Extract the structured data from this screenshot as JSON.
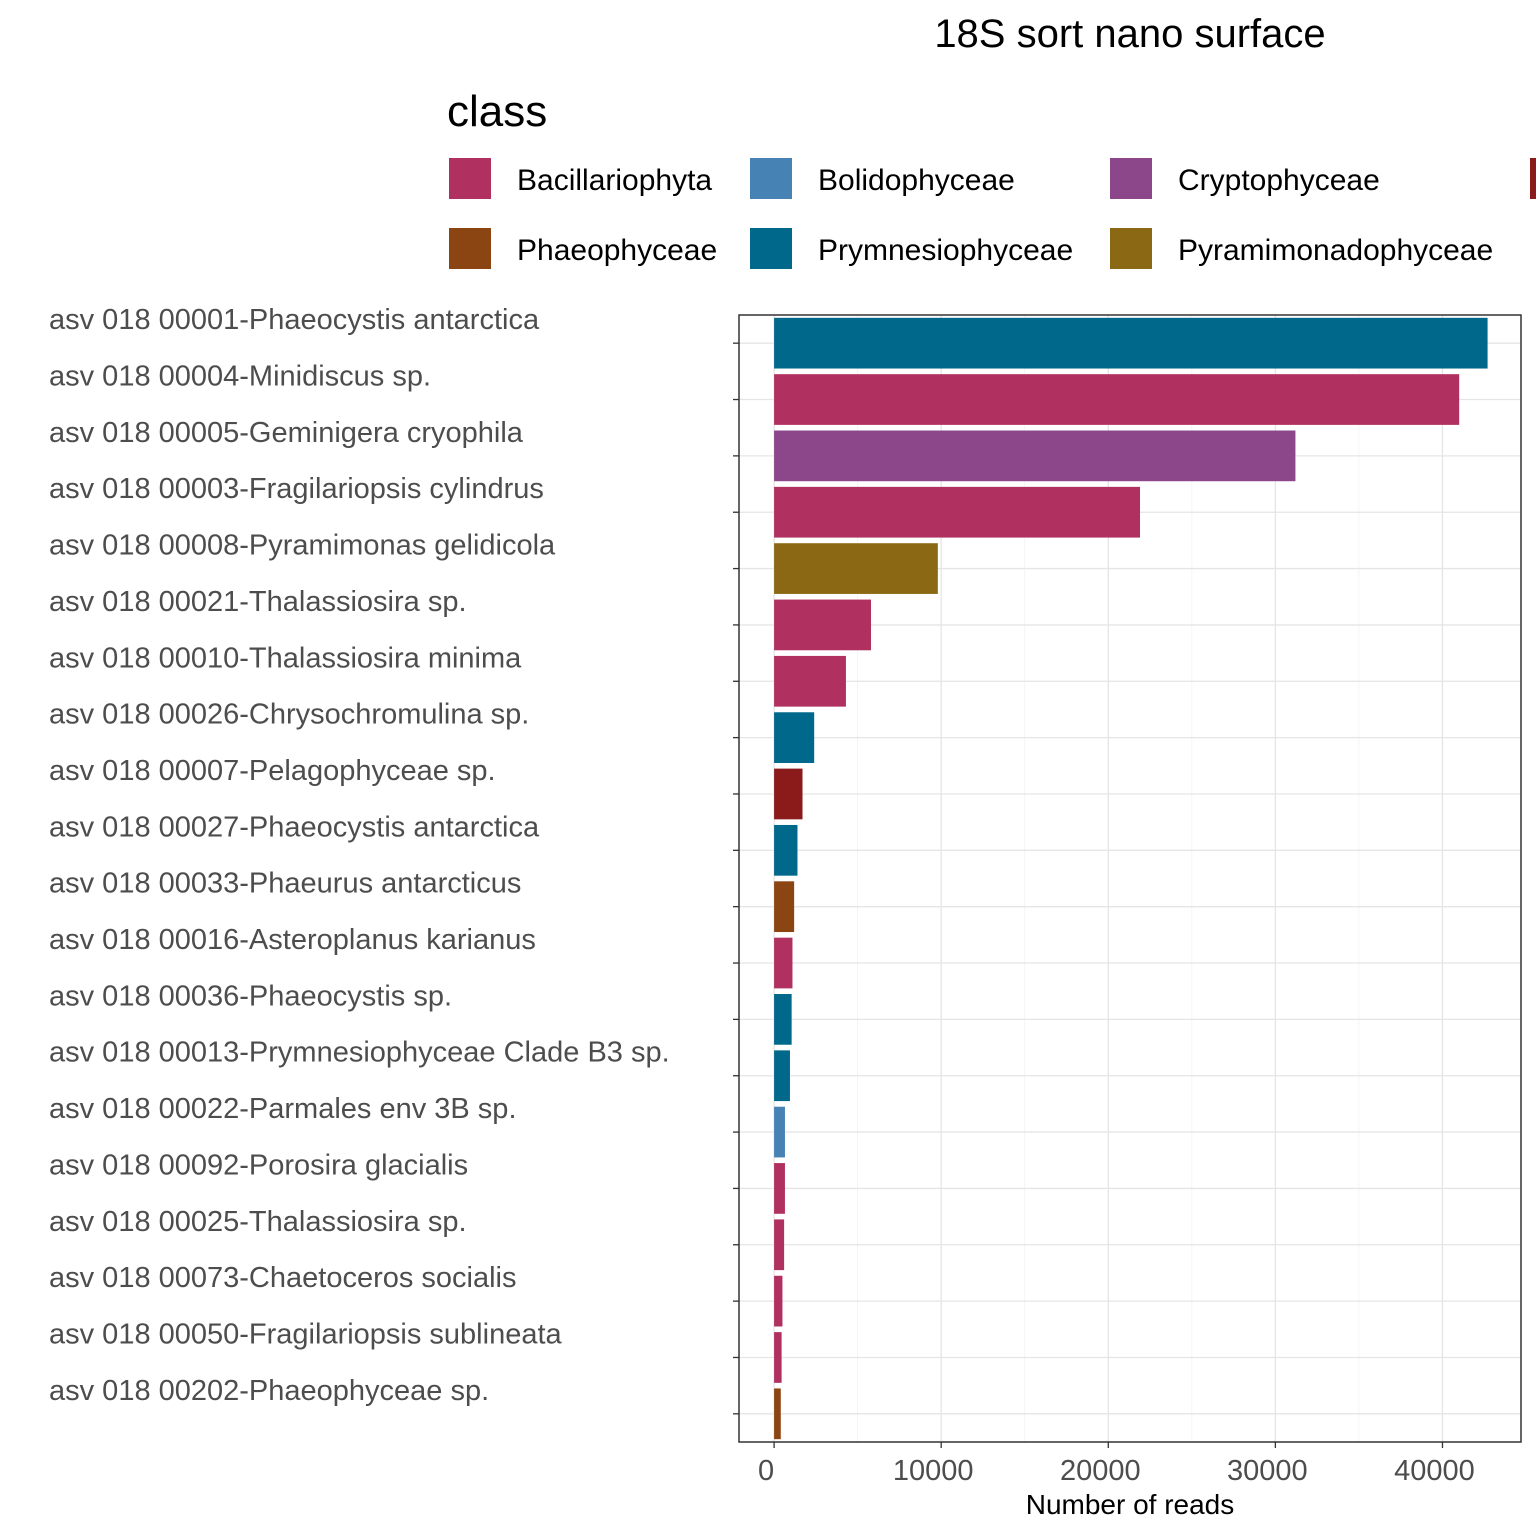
{
  "chart_data": {
    "type": "bar",
    "orientation": "horizontal",
    "title": "18S sort nano surface",
    "xlabel": "Number of reads",
    "ylabel": "",
    "xlim": [
      -2100,
      44700
    ],
    "xticks": [
      0,
      10000,
      20000,
      30000,
      40000
    ],
    "xtick_labels": [
      "0",
      "10000",
      "20000",
      "30000",
      "40000"
    ],
    "grid": true,
    "legend": {
      "title": "class",
      "placement": "top",
      "entries": [
        {
          "label": "Bacillariophyta",
          "color": "#B03060"
        },
        {
          "label": "Bolidophyceae",
          "color": "#4682B4"
        },
        {
          "label": "Cryptophyceae",
          "color": "#8B4789"
        },
        {
          "label": "",
          "color": "#8B1A1A"
        },
        {
          "label": "Phaeophyceae",
          "color": "#8B4513"
        },
        {
          "label": "Prymnesiophyceae",
          "color": "#00688B"
        },
        {
          "label": "Pyramimonadophyceae",
          "color": "#8B6914"
        }
      ]
    },
    "categories": [
      "asv 018 00001-Phaeocystis antarctica",
      "asv 018 00004-Minidiscus sp.",
      "asv 018 00005-Geminigera cryophila",
      "asv 018 00003-Fragilariopsis cylindrus",
      "asv 018 00008-Pyramimonas gelidicola",
      "asv 018 00021-Thalassiosira sp.",
      "asv 018 00010-Thalassiosira minima",
      "asv 018 00026-Chrysochromulina sp.",
      "asv 018 00007-Pelagophyceae sp.",
      "asv 018 00027-Phaeocystis antarctica",
      "asv 018 00033-Phaeurus antarcticus",
      "asv 018 00016-Asteroplanus karianus",
      "asv 018 00036-Phaeocystis sp.",
      "asv 018 00013-Prymnesiophyceae Clade B3 sp.",
      "asv 018 00022-Parmales env 3B sp.",
      "asv 018 00092-Porosira glacialis",
      "asv 018 00025-Thalassiosira sp.",
      "asv 018 00073-Chaetoceros socialis",
      "asv 018 00050-Fragilariopsis sublineata",
      "asv 018 00202-Phaeophyceae sp."
    ],
    "values": [
      42700,
      41000,
      31200,
      21900,
      9800,
      5800,
      4300,
      2400,
      1700,
      1400,
      1200,
      1100,
      1050,
      950,
      650,
      650,
      600,
      500,
      450,
      400
    ],
    "bar_colors": [
      "#00688B",
      "#B03060",
      "#8B4789",
      "#B03060",
      "#8B6914",
      "#B03060",
      "#B03060",
      "#00688B",
      "#8B1A1A",
      "#00688B",
      "#8B4513",
      "#B03060",
      "#00688B",
      "#00688B",
      "#4682B4",
      "#B03060",
      "#B03060",
      "#B03060",
      "#B03060",
      "#8B4513"
    ]
  }
}
